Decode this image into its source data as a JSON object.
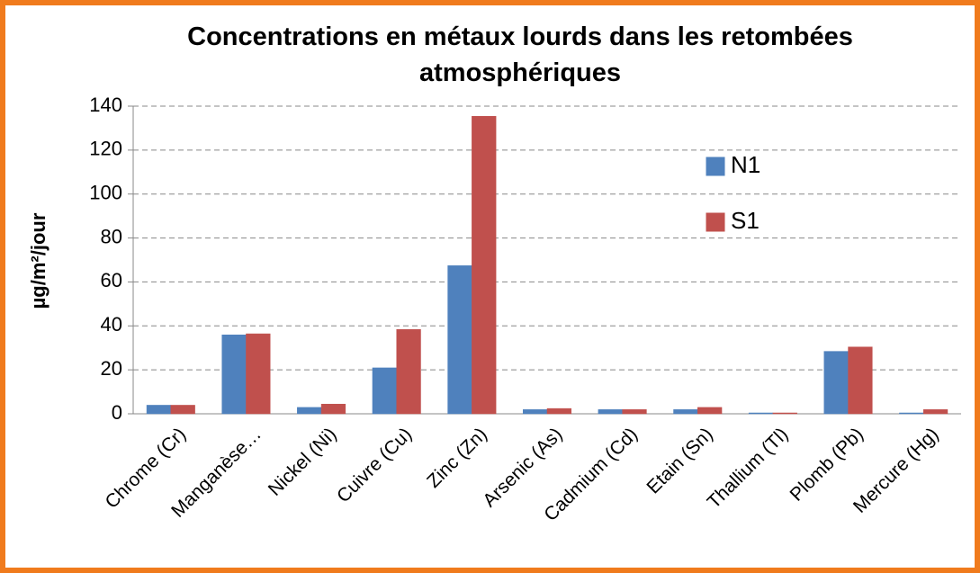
{
  "chart_data": {
    "type": "bar",
    "title": "Concentrations en métaux lourds dans les retombées atmosphériques",
    "y_label": "µg/m²/jour",
    "categories": [
      "Chrome (Cr)",
      "Manganèse…",
      "Nickel (Ni)",
      "Cuivre (Cu)",
      "Zinc (Zn)",
      "Arsenic (As)",
      "Cadmium (Cd)",
      "Etain (Sn)",
      "Thallium (Tl)",
      "Plomb (Pb)",
      "Mercure (Hg)"
    ],
    "series": [
      {
        "name": "N1",
        "color": "#4f81bd",
        "values": [
          3.5,
          35.5,
          2.5,
          20.5,
          67,
          1.5,
          1.5,
          1.5,
          0,
          28,
          0
        ]
      },
      {
        "name": "S1",
        "color": "#c0504d",
        "values": [
          3.5,
          36,
          4,
          38,
          135,
          2,
          1.5,
          2.5,
          0,
          30,
          1.5
        ]
      }
    ],
    "ylim": [
      0,
      140
    ],
    "yticks": [
      0,
      20,
      40,
      60,
      80,
      100,
      120,
      140
    ],
    "grid": true
  }
}
